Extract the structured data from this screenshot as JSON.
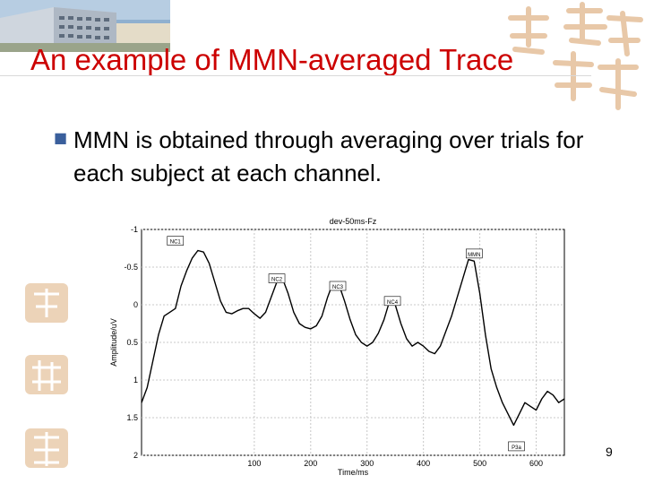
{
  "slide": {
    "title": "An example of MMN-averaged Trace",
    "bullet": "MMN is obtained through averaging over trials for each subject at each channel.",
    "page_number": "9"
  },
  "colors": {
    "title": "#cc0000",
    "bullet_marker": "#3a5f9c",
    "trace": "#000000",
    "grid": "#c8c8c8",
    "ornament": "#e8c8a8"
  },
  "icons": {
    "bullet_marker": "square-bullet-icon",
    "header_photo": "building-photo",
    "ornament": "chinese-calligraphy-ornament"
  },
  "chart_data": {
    "type": "line",
    "title": "dev-50ms-Fz",
    "xlabel": "Time/ms",
    "ylabel": "Amplitude/uV",
    "xlim": [
      -100,
      650
    ],
    "ylim": [
      -1,
      2
    ],
    "y_inverted": true,
    "grid": true,
    "x_ticks": [
      "100",
      "200",
      "300",
      "400",
      "500",
      "600"
    ],
    "x_tick_values": [
      100,
      200,
      300,
      400,
      500,
      600
    ],
    "y_ticks": [
      "-1",
      "-0.5",
      "0",
      "0.5",
      "1",
      "1.5",
      "2"
    ],
    "y_tick_values": [
      -1,
      -0.5,
      0,
      0.5,
      1,
      1.5,
      2
    ],
    "series": [
      {
        "x": [
          -100,
          -90,
          -80,
          -70,
          -60,
          -50,
          -40,
          -30,
          -20,
          -10,
          0,
          10,
          20,
          30,
          40,
          50,
          60,
          70,
          80,
          90,
          100,
          110,
          120,
          130,
          140,
          150,
          160,
          170,
          180,
          190,
          200,
          210,
          220,
          230,
          240,
          250,
          260,
          270,
          280,
          290,
          300,
          310,
          320,
          330,
          340,
          350,
          360,
          370,
          380,
          390,
          400,
          410,
          420,
          430,
          440,
          450,
          460,
          470,
          480,
          490,
          500,
          510,
          520,
          530,
          540,
          550,
          560,
          570,
          580,
          590,
          600,
          610,
          620,
          630,
          640,
          650
        ],
        "y": [
          1.3,
          1.1,
          0.75,
          0.4,
          0.15,
          0.1,
          0.05,
          -0.25,
          -0.45,
          -0.62,
          -0.72,
          -0.7,
          -0.55,
          -0.3,
          -0.05,
          0.1,
          0.12,
          0.08,
          0.05,
          0.05,
          0.12,
          0.18,
          0.1,
          -0.1,
          -0.3,
          -0.35,
          -0.15,
          0.1,
          0.25,
          0.3,
          0.32,
          0.28,
          0.15,
          -0.1,
          -0.3,
          -0.27,
          -0.05,
          0.2,
          0.4,
          0.5,
          0.55,
          0.5,
          0.38,
          0.2,
          -0.05,
          0.0,
          0.25,
          0.45,
          0.55,
          0.5,
          0.55,
          0.62,
          0.65,
          0.55,
          0.35,
          0.15,
          -0.1,
          -0.35,
          -0.6,
          -0.58,
          -0.15,
          0.4,
          0.85,
          1.1,
          1.3,
          1.45,
          1.6,
          1.45,
          1.3,
          1.35,
          1.4,
          1.25,
          1.15,
          1.2,
          1.3,
          1.25
        ]
      }
    ],
    "annotations": [
      {
        "text": "NC1",
        "x": -40,
        "y": -0.85
      },
      {
        "text": "NC2",
        "x": 140,
        "y": -0.35
      },
      {
        "text": "NC3",
        "x": 248,
        "y": -0.25
      },
      {
        "text": "NC4",
        "x": 345,
        "y": -0.05
      },
      {
        "text": "MMN",
        "x": 490,
        "y": -0.68
      },
      {
        "text": "P3a",
        "x": 565,
        "y": 1.88
      }
    ]
  }
}
